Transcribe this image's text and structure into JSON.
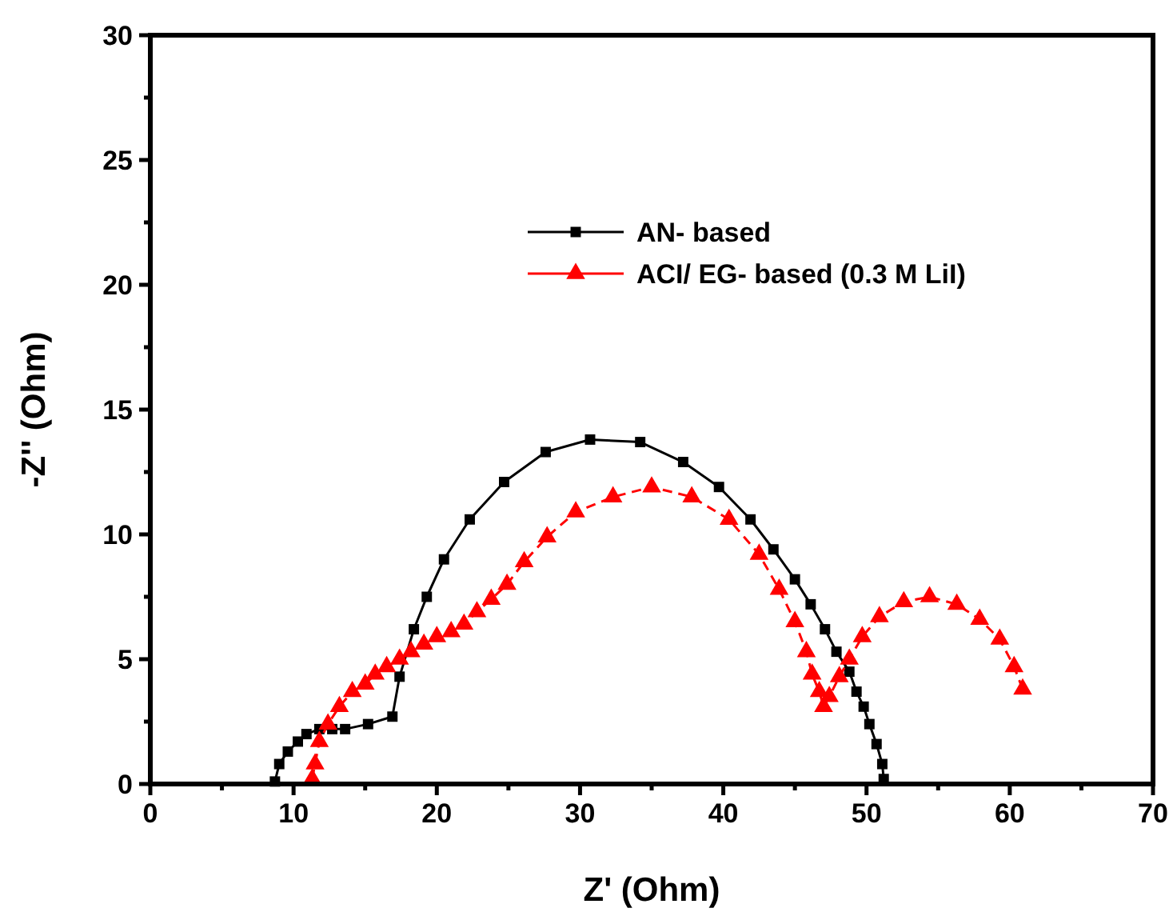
{
  "chart_data": {
    "type": "line",
    "xlabel": "Z' (Ohm)",
    "ylabel": "-Z'' (Ohm)",
    "xlim": [
      0,
      70
    ],
    "ylim": [
      0,
      30
    ],
    "xticks": [
      0,
      {
        "value": 5,
        "label": null
      },
      10,
      {
        "value": 15,
        "label": null
      },
      20,
      {
        "value": 25,
        "label": null
      },
      30,
      {
        "value": 35,
        "label": null
      },
      40,
      {
        "value": 45,
        "label": null
      },
      50,
      {
        "value": 55,
        "label": null
      },
      60,
      {
        "value": 65,
        "label": null
      },
      70
    ],
    "yticks": [
      0,
      {
        "value": 2.5,
        "label": null
      },
      5,
      {
        "value": 7.5,
        "label": null
      },
      10,
      {
        "value": 12.5,
        "label": null
      },
      15,
      {
        "value": 17.5,
        "label": null
      },
      20,
      {
        "value": 22.5,
        "label": null
      },
      25,
      {
        "value": 27.5,
        "label": null
      },
      30
    ],
    "grid": false,
    "legend": "top right",
    "series": [
      {
        "name": "AN- based",
        "color": "#000000",
        "marker": "square",
        "line_style": "solid",
        "x": [
          8.7,
          9.0,
          9.6,
          10.3,
          10.9,
          11.8,
          12.7,
          13.6,
          15.2,
          16.9,
          17.4,
          18.4,
          19.3,
          20.5,
          22.3,
          24.7,
          27.6,
          30.7,
          34.2,
          37.2,
          39.7,
          41.9,
          43.5,
          45.0,
          46.1,
          47.1,
          47.9,
          48.8,
          49.3,
          49.8,
          50.2,
          50.7,
          51.1,
          51.2
        ],
        "values": [
          0.1,
          0.8,
          1.3,
          1.7,
          2.0,
          2.2,
          2.2,
          2.2,
          2.4,
          2.7,
          4.3,
          6.2,
          7.5,
          9.0,
          10.6,
          12.1,
          13.3,
          13.8,
          13.7,
          12.9,
          11.9,
          10.6,
          9.4,
          8.2,
          7.2,
          6.2,
          5.3,
          4.5,
          3.7,
          3.1,
          2.4,
          1.6,
          0.8,
          0.2
        ]
      },
      {
        "name": "ACI/ EG- based (0.3 M LiI)",
        "color": "#ff0000",
        "marker": "triangle",
        "line_style": "dashed",
        "x": [
          11.3,
          11.5,
          11.8,
          12.4,
          13.2,
          14.1,
          15.0,
          15.7,
          16.5,
          17.4,
          18.2,
          19.1,
          20.0,
          21.0,
          21.9,
          22.8,
          23.8,
          24.9,
          26.1,
          27.7,
          29.7,
          32.3,
          35.0,
          37.8,
          40.4,
          42.5,
          43.9,
          45.0,
          45.8,
          46.2,
          46.7,
          47.0,
          47.4,
          48.1,
          48.8,
          49.7,
          50.9,
          52.6,
          54.4,
          56.3,
          57.9,
          59.3,
          60.3,
          60.9
        ],
        "values": [
          0.2,
          0.8,
          1.7,
          2.4,
          3.1,
          3.7,
          4.0,
          4.4,
          4.7,
          5.0,
          5.3,
          5.6,
          5.9,
          6.1,
          6.4,
          6.9,
          7.4,
          8.0,
          8.9,
          9.9,
          10.9,
          11.5,
          11.9,
          11.5,
          10.6,
          9.2,
          7.8,
          6.5,
          5.3,
          4.4,
          3.7,
          3.1,
          3.5,
          4.3,
          5.0,
          5.9,
          6.7,
          7.3,
          7.5,
          7.2,
          6.6,
          5.8,
          4.7,
          3.8
        ]
      }
    ]
  }
}
